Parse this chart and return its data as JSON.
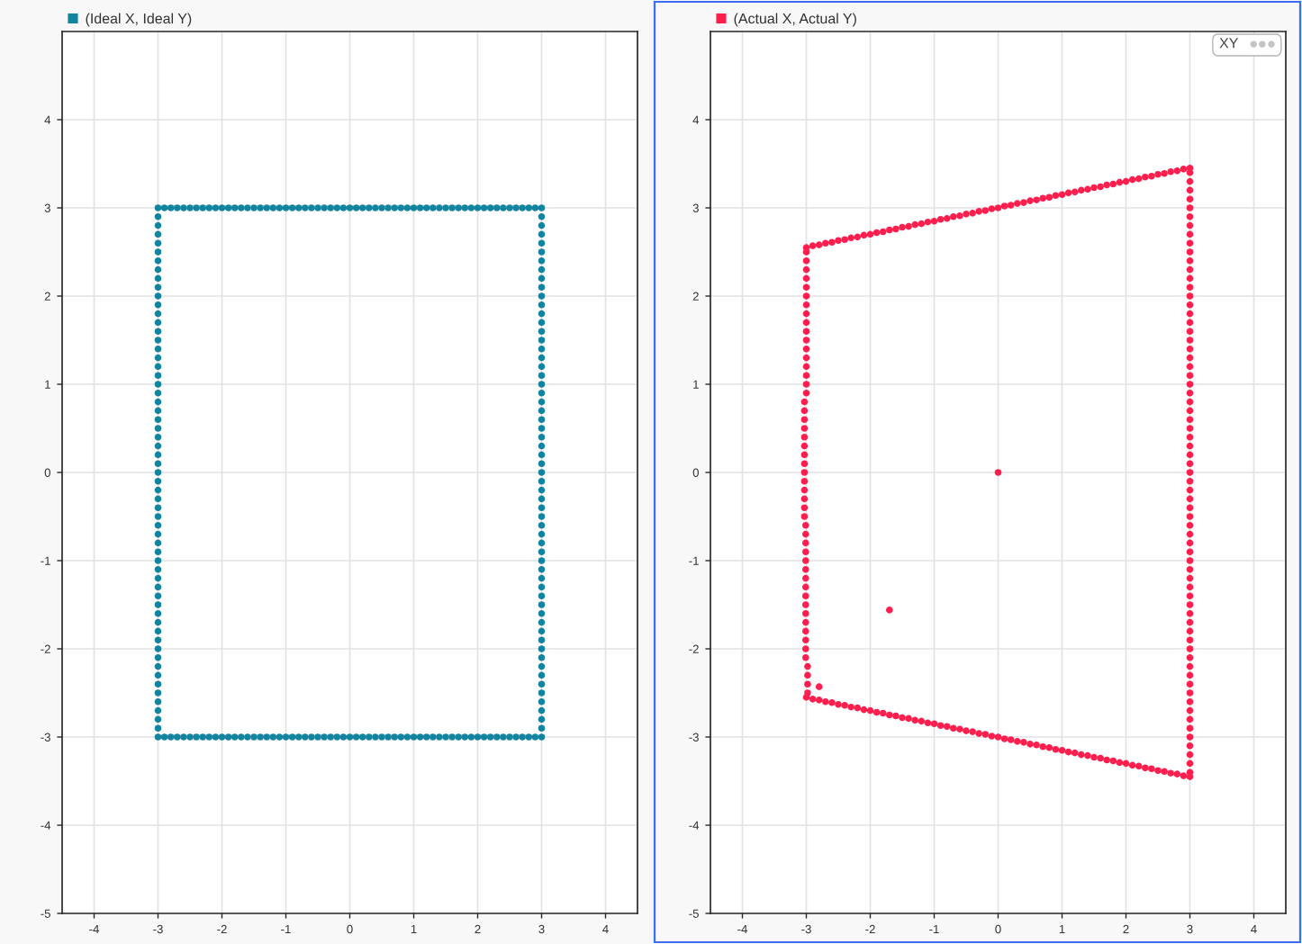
{
  "chart_data": [
    {
      "type": "scatter",
      "marker": "circle",
      "grid": true,
      "legend": "top left",
      "xlim": [
        -4.5,
        4.5
      ],
      "xticks": [
        -4,
        -3,
        -2,
        -1,
        0,
        1,
        2,
        3,
        4
      ],
      "ylim": [
        -5,
        5
      ],
      "yticks": [
        -5,
        -4,
        -3,
        -2,
        -1,
        0,
        1,
        2,
        3,
        4
      ],
      "series": [
        {
          "name": "(Ideal X, Ideal Y)",
          "color": "#12849f",
          "x": [
            -3,
            -2.9,
            -2.8,
            -2.7,
            -2.6,
            -2.5,
            -2.4,
            -2.3,
            -2.2,
            -2.1,
            -2,
            -1.9,
            -1.8,
            -1.7,
            -1.6,
            -1.5,
            -1.4,
            -1.3,
            -1.2,
            -1.1,
            -1,
            -0.9,
            -0.8,
            -0.7,
            -0.6,
            -0.5,
            -0.4,
            -0.3,
            -0.2,
            -0.1,
            0,
            0.1,
            0.2,
            0.3,
            0.4,
            0.5,
            0.6,
            0.7,
            0.8,
            0.9,
            1,
            1.1,
            1.2,
            1.3,
            1.4,
            1.5,
            1.6,
            1.7,
            1.8,
            1.9,
            2,
            2.1,
            2.2,
            2.3,
            2.4,
            2.5,
            2.6,
            2.7,
            2.8,
            2.9,
            3,
            3,
            3,
            3,
            3,
            3,
            3,
            3,
            3,
            3,
            3,
            3,
            3,
            3,
            3,
            3,
            3,
            3,
            3,
            3,
            3,
            3,
            3,
            3,
            3,
            3,
            3,
            3,
            3,
            3,
            3,
            3,
            3,
            3,
            3,
            3,
            3,
            3,
            3,
            3,
            3,
            3,
            3,
            3,
            3,
            3,
            3,
            3,
            3,
            3,
            3,
            3,
            3,
            3,
            3,
            3,
            3,
            3,
            3,
            3,
            3,
            2.9,
            2.8,
            2.7,
            2.6,
            2.5,
            2.4,
            2.3,
            2.2,
            2.1,
            2,
            1.9,
            1.8,
            1.7,
            1.6,
            1.5,
            1.4,
            1.3,
            1.2,
            1.1,
            1,
            0.9,
            0.8,
            0.7,
            0.6,
            0.5,
            0.4,
            0.3,
            0.2,
            0.1,
            0,
            -0.1,
            -0.2,
            -0.3,
            -0.4,
            -0.5,
            -0.6,
            -0.7,
            -0.8,
            -0.9,
            -1,
            -1.1,
            -1.2,
            -1.3,
            -1.4,
            -1.5,
            -1.6,
            -1.7,
            -1.8,
            -1.9,
            -2,
            -2.1,
            -2.2,
            -2.3,
            -2.4,
            -2.5,
            -2.6,
            -2.7,
            -2.8,
            -2.9,
            -3,
            -3,
            -3,
            -3,
            -3,
            -3,
            -3,
            -3,
            -3,
            -3,
            -3,
            -3,
            -3,
            -3,
            -3,
            -3,
            -3,
            -3,
            -3,
            -3,
            -3,
            -3,
            -3,
            -3,
            -3,
            -3,
            -3,
            -3,
            -3,
            -3,
            -3,
            -3,
            -3,
            -3,
            -3,
            -3,
            -3,
            -3,
            -3,
            -3,
            -3,
            -3,
            -3,
            -3,
            -3,
            -3,
            -3,
            -3,
            -3,
            -3,
            -3,
            -3,
            -3,
            -3,
            -3,
            -3,
            -3,
            -3,
            -3,
            -3
          ],
          "values": [
            -3,
            -3,
            -3,
            -3,
            -3,
            -3,
            -3,
            -3,
            -3,
            -3,
            -3,
            -3,
            -3,
            -3,
            -3,
            -3,
            -3,
            -3,
            -3,
            -3,
            -3,
            -3,
            -3,
            -3,
            -3,
            -3,
            -3,
            -3,
            -3,
            -3,
            -3,
            -3,
            -3,
            -3,
            -3,
            -3,
            -3,
            -3,
            -3,
            -3,
            -3,
            -3,
            -3,
            -3,
            -3,
            -3,
            -3,
            -3,
            -3,
            -3,
            -3,
            -3,
            -3,
            -3,
            -3,
            -3,
            -3,
            -3,
            -3,
            -3,
            -3,
            -2.9,
            -2.8,
            -2.7,
            -2.6,
            -2.5,
            -2.4,
            -2.3,
            -2.2,
            -2.1,
            -2,
            -1.9,
            -1.8,
            -1.7,
            -1.6,
            -1.5,
            -1.4,
            -1.3,
            -1.2,
            -1.1,
            -1,
            -0.9,
            -0.8,
            -0.7,
            -0.6,
            -0.5,
            -0.4,
            -0.3,
            -0.2,
            -0.1,
            0,
            0.1,
            0.2,
            0.3,
            0.4,
            0.5,
            0.6,
            0.7,
            0.8,
            0.9,
            1,
            1.1,
            1.2,
            1.3,
            1.4,
            1.5,
            1.6,
            1.7,
            1.8,
            1.9,
            2,
            2.1,
            2.2,
            2.3,
            2.4,
            2.5,
            2.6,
            2.7,
            2.8,
            2.9,
            3,
            3,
            3,
            3,
            3,
            3,
            3,
            3,
            3,
            3,
            3,
            3,
            3,
            3,
            3,
            3,
            3,
            3,
            3,
            3,
            3,
            3,
            3,
            3,
            3,
            3,
            3,
            3,
            3,
            3,
            3,
            3,
            3,
            3,
            3,
            3,
            3,
            3,
            3,
            3,
            3,
            3,
            3,
            3,
            3,
            3,
            3,
            3,
            3,
            3,
            3,
            3,
            3,
            3,
            3,
            3,
            3,
            3,
            3,
            3,
            3,
            2.9,
            2.8,
            2.7,
            2.6,
            2.5,
            2.4,
            2.3,
            2.2,
            2.1,
            2,
            1.9,
            1.8,
            1.7,
            1.6,
            1.5,
            1.4,
            1.3,
            1.2,
            1.1,
            1,
            0.9,
            0.8,
            0.7,
            0.6,
            0.5,
            0.4,
            0.3,
            0.2,
            0.1,
            0,
            -0.1,
            -0.2,
            -0.3,
            -0.4,
            -0.5,
            -0.6,
            -0.7,
            -0.8,
            -0.9,
            -1,
            -1.1,
            -1.2,
            -1.3,
            -1.4,
            -1.5,
            -1.6,
            -1.7,
            -1.8,
            -1.9,
            -2,
            -2.1,
            -2.2,
            -2.3,
            -2.4,
            -2.5,
            -2.6,
            -2.7,
            -2.8,
            -2.9
          ]
        }
      ]
    },
    {
      "type": "scatter",
      "marker": "circle",
      "grid": true,
      "legend": "top left",
      "xlim": [
        -4.5,
        4.5
      ],
      "xticks": [
        -4,
        -3,
        -2,
        -1,
        0,
        1,
        2,
        3,
        4
      ],
      "ylim": [
        -5,
        5
      ],
      "yticks": [
        -5,
        -4,
        -3,
        -2,
        -1,
        0,
        1,
        2,
        3,
        4
      ],
      "annotations": [
        "XY"
      ],
      "series": [
        {
          "name": "(Actual X, Actual Y)",
          "color": "#ff1f4e",
          "x": [
            -3,
            -2.9,
            -2.8,
            -2.7,
            -2.6,
            -2.5,
            -2.4,
            -2.3,
            -2.2,
            -2.1,
            -2,
            -1.9,
            -1.8,
            -1.7,
            -1.6,
            -1.5,
            -1.4,
            -1.3,
            -1.2,
            -1.1,
            -1,
            -0.9,
            -0.8,
            -0.7,
            -0.6,
            -0.5,
            -0.4,
            -0.3,
            -0.2,
            -0.1,
            0,
            0.1,
            0.2,
            0.3,
            0.4,
            0.5,
            0.6,
            0.7,
            0.8,
            0.9,
            1,
            1.1,
            1.2,
            1.3,
            1.4,
            1.5,
            1.6,
            1.7,
            1.8,
            1.9,
            2,
            2.1,
            2.2,
            2.3,
            2.4,
            2.5,
            2.6,
            2.7,
            2.8,
            2.9,
            3,
            3,
            3,
            3,
            3,
            3,
            3,
            3,
            3,
            3,
            3,
            3,
            3,
            3,
            3,
            3,
            3,
            3,
            3,
            3,
            3,
            3,
            3,
            3,
            3,
            3,
            3,
            3,
            3,
            3,
            3,
            3,
            3,
            3,
            3,
            3,
            3,
            3,
            3,
            3,
            3,
            3,
            3,
            3,
            3,
            3,
            3,
            3,
            3,
            3,
            3,
            3,
            3,
            3,
            3,
            3,
            3,
            3,
            3,
            3,
            3,
            3,
            3,
            3,
            3,
            3,
            3,
            3,
            3,
            3,
            3,
            2.9,
            2.8,
            2.7,
            2.6,
            2.5,
            2.4,
            2.3,
            2.2,
            2.1,
            2,
            1.9,
            1.8,
            1.7,
            1.6,
            1.5,
            1.4,
            1.3,
            1.2,
            1.1,
            1,
            0.9,
            0.8,
            0.7,
            0.6,
            0.5,
            0.4,
            0.3,
            0.2,
            0.1,
            0,
            -0.1,
            -0.2,
            -0.3,
            -0.4,
            -0.5,
            -0.6,
            -0.7,
            -0.8,
            -0.9,
            -1,
            -1.1,
            -1.2,
            -1.3,
            -1.4,
            -1.5,
            -1.6,
            -1.7,
            -1.8,
            -1.9,
            -2,
            -2.1,
            -2.2,
            -2.3,
            -2.4,
            -2.5,
            -2.6,
            -2.7,
            -2.8,
            -2.9,
            -3,
            -3,
            -3,
            -3,
            -3,
            -3,
            -3,
            -3,
            -3,
            -3,
            -3,
            -3,
            -3,
            -3,
            -3,
            -3,
            -3,
            -3,
            -3.03,
            -3.03,
            -3.03,
            -3.03,
            -3.03,
            -3.03,
            -3.03,
            -3.03,
            -3.03,
            -3.03,
            -3.03,
            -3.03,
            -3.03,
            -3.03,
            -3.01,
            -3.01,
            -3.01,
            -3.01,
            -3.01,
            -3.01,
            -3.01,
            -3.01,
            -3.01,
            -3.01,
            -3.01,
            -3.01,
            -3.01,
            -3.01,
            -3.01,
            -3.01,
            -2.98,
            -2.98,
            -2.98,
            -2.98,
            0,
            -1.7,
            -2.8
          ],
          "values": [
            -2.55,
            -2.57,
            -2.58,
            -2.6,
            -2.61,
            -2.63,
            -2.64,
            -2.66,
            -2.67,
            -2.69,
            -2.7,
            -2.72,
            -2.73,
            -2.75,
            -2.76,
            -2.78,
            -2.79,
            -2.81,
            -2.82,
            -2.84,
            -2.85,
            -2.87,
            -2.88,
            -2.9,
            -2.91,
            -2.93,
            -2.94,
            -2.96,
            -2.97,
            -2.99,
            -3,
            -3.02,
            -3.03,
            -3.05,
            -3.06,
            -3.08,
            -3.09,
            -3.11,
            -3.12,
            -3.14,
            -3.15,
            -3.17,
            -3.18,
            -3.2,
            -3.21,
            -3.23,
            -3.24,
            -3.26,
            -3.27,
            -3.29,
            -3.3,
            -3.32,
            -3.33,
            -3.35,
            -3.36,
            -3.38,
            -3.39,
            -3.41,
            -3.42,
            -3.44,
            -3.45,
            -3.4,
            -3.3,
            -3.2,
            -3.1,
            -3,
            -2.9,
            -2.8,
            -2.7,
            -2.6,
            -2.5,
            -2.4,
            -2.3,
            -2.2,
            -2.1,
            -2,
            -1.9,
            -1.8,
            -1.7,
            -1.6,
            -1.5,
            -1.4,
            -1.3,
            -1.2,
            -1.1,
            -1,
            -0.9,
            -0.8,
            -0.7,
            -0.6,
            -0.5,
            -0.4,
            -0.3,
            -0.2,
            -0.1,
            0,
            0.1,
            0.2,
            0.3,
            0.4,
            0.5,
            0.6,
            0.7,
            0.8,
            0.9,
            1,
            1.1,
            1.2,
            1.3,
            1.4,
            1.5,
            1.6,
            1.7,
            1.8,
            1.9,
            2,
            2.1,
            2.2,
            2.3,
            2.4,
            2.5,
            2.6,
            2.7,
            2.8,
            2.9,
            3,
            3.1,
            3.2,
            3.3,
            3.4,
            3.45,
            3.44,
            3.42,
            3.41,
            3.39,
            3.38,
            3.36,
            3.35,
            3.33,
            3.32,
            3.3,
            3.29,
            3.27,
            3.26,
            3.24,
            3.23,
            3.21,
            3.2,
            3.18,
            3.17,
            3.15,
            3.14,
            3.12,
            3.11,
            3.09,
            3.08,
            3.06,
            3.05,
            3.03,
            3.02,
            3,
            2.99,
            2.97,
            2.96,
            2.94,
            2.93,
            2.91,
            2.9,
            2.88,
            2.87,
            2.85,
            2.84,
            2.82,
            2.81,
            2.79,
            2.78,
            2.76,
            2.75,
            2.73,
            2.72,
            2.7,
            2.69,
            2.67,
            2.66,
            2.64,
            2.63,
            2.61,
            2.6,
            2.58,
            2.57,
            2.55,
            2.5,
            2.4,
            2.3,
            2.2,
            2.1,
            2,
            1.9,
            1.8,
            1.7,
            1.6,
            1.5,
            1.4,
            1.3,
            1.2,
            1.1,
            1,
            0.9,
            0.8,
            0.7,
            0.6,
            0.5,
            0.4,
            0.3,
            0.2,
            0.1,
            0,
            -0.1,
            -0.2,
            -0.3,
            -0.4,
            -0.5,
            -0.6,
            -0.7,
            -0.8,
            -0.9,
            -1,
            -1.1,
            -1.2,
            -1.3,
            -1.4,
            -1.5,
            -1.6,
            -1.7,
            -1.8,
            -1.9,
            -2,
            -2.1,
            -2.2,
            -2.3,
            -2.4,
            -2.5,
            0,
            -1.56,
            -2.43
          ]
        }
      ]
    }
  ]
}
